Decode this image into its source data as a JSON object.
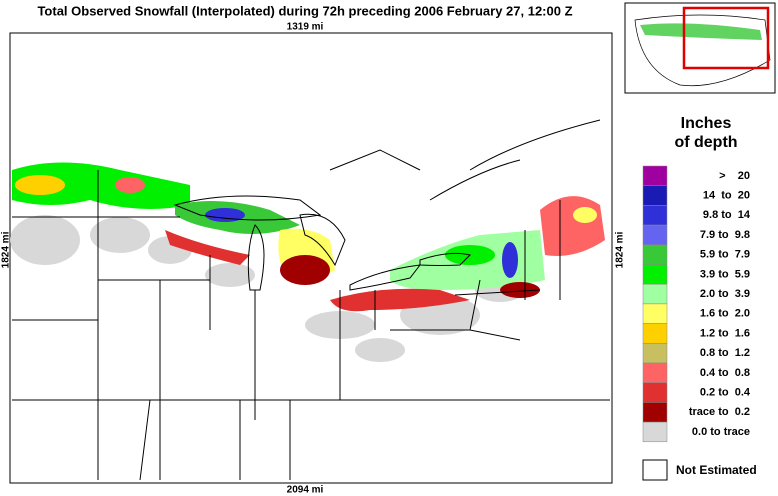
{
  "header": {
    "title": "Total Observed Snowfall (Interpolated) during 72h preceding 2006 February 27, 12:00 Z",
    "top_scale": "1319 mi",
    "bottom_scale": "2094 mi",
    "left_scale": "1824 mi",
    "right_scale": "1824 mi"
  },
  "legend": {
    "title_line1": "Inches",
    "title_line2": "of depth",
    "entries": [
      {
        "label": ">    20",
        "color": "#a000a0"
      },
      {
        "label": "14  to  20",
        "color": "#1a1ab4"
      },
      {
        "label": "9.8 to  14",
        "color": "#3030d8"
      },
      {
        "label": "7.9 to  9.8",
        "color": "#6464f0"
      },
      {
        "label": "5.9 to  7.9",
        "color": "#38c838"
      },
      {
        "label": "3.9 to  5.9",
        "color": "#00f000"
      },
      {
        "label": "2.0 to  3.9",
        "color": "#a0ffa0"
      },
      {
        "label": "1.6 to  2.0",
        "color": "#ffff64"
      },
      {
        "label": "1.2 to  1.6",
        "color": "#ffd000"
      },
      {
        "label": "0.8 to  1.2",
        "color": "#c8c060"
      },
      {
        "label": "0.4 to  0.8",
        "color": "#ff6464"
      },
      {
        "label": "0.2 to  0.4",
        "color": "#e03030"
      },
      {
        "label": "trace to  0.2",
        "color": "#a00000"
      },
      {
        "label": "0.0 to trace",
        "color": "#d8d8d8"
      }
    ],
    "not_estimated": "Not Estimated"
  }
}
